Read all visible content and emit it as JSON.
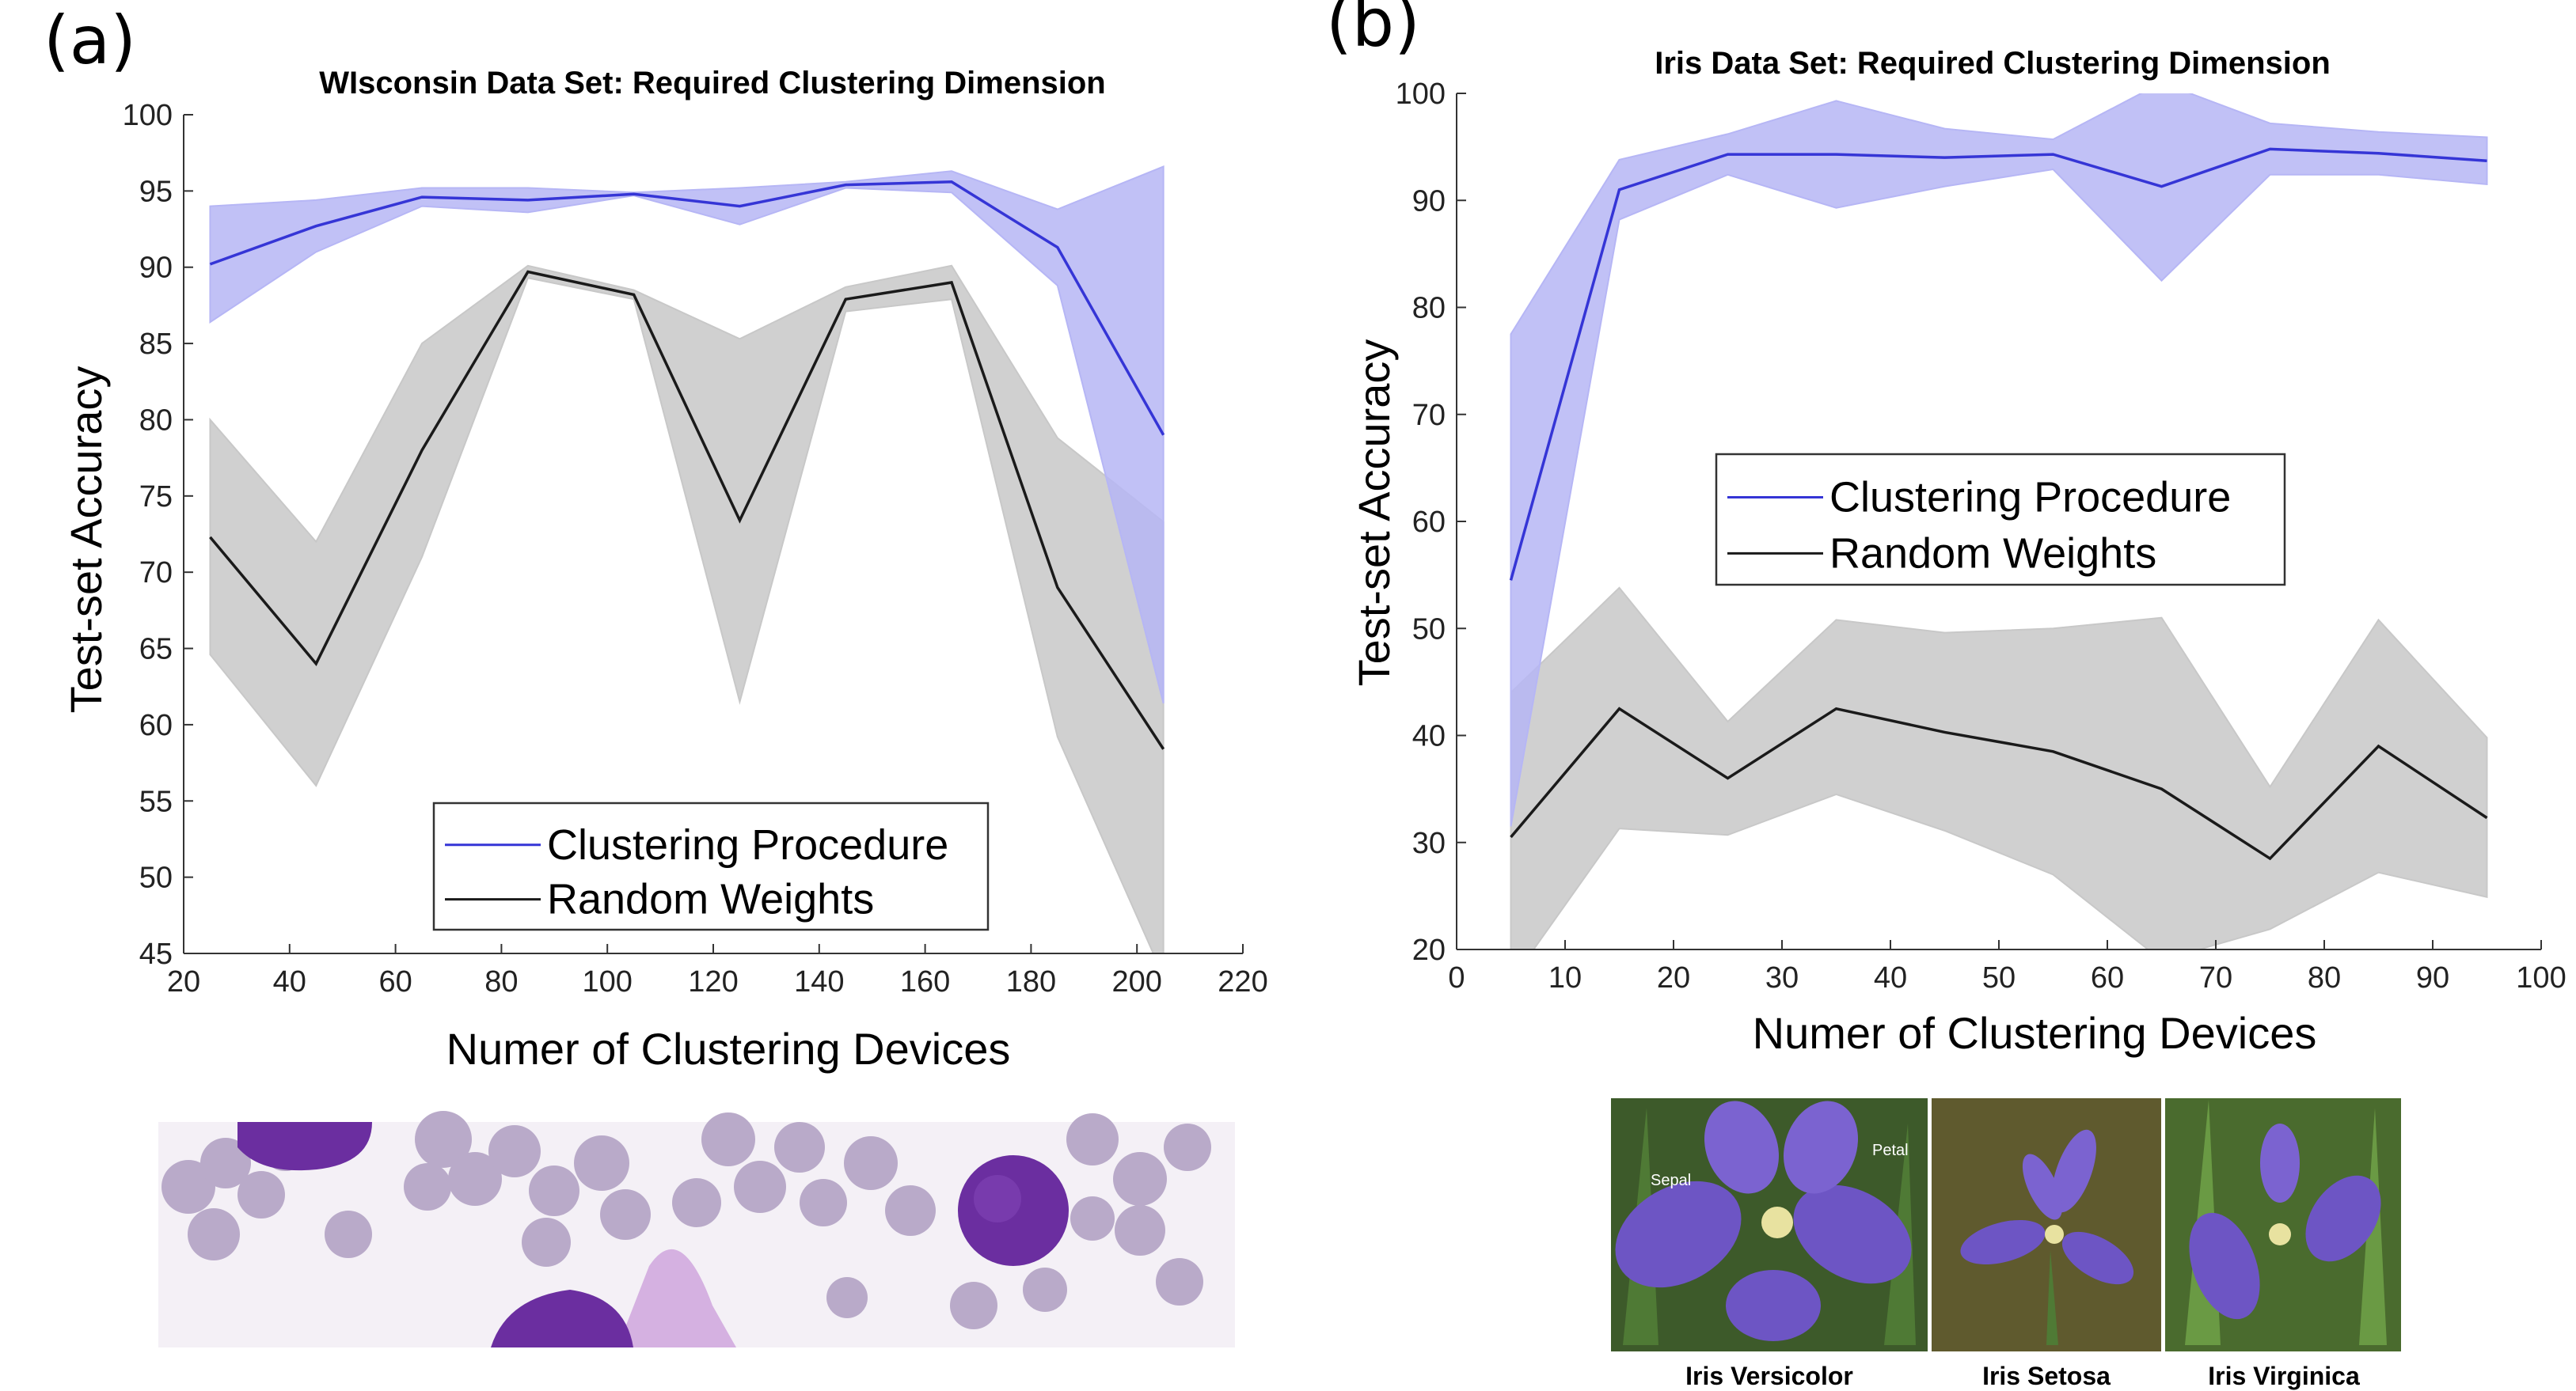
{
  "chart_data": [
    {
      "panel_label": "(a)",
      "type": "line",
      "title": "WIsconsin Data Set: Required Clustering Dimension",
      "xlabel": "Numer of Clustering Devices",
      "ylabel": "Test-set Accuracy",
      "xlim": [
        20,
        220
      ],
      "ylim": [
        45,
        100
      ],
      "xticks": [
        20,
        40,
        60,
        80,
        100,
        120,
        140,
        160,
        180,
        200,
        220
      ],
      "yticks": [
        45,
        50,
        55,
        60,
        65,
        70,
        75,
        80,
        85,
        90,
        95,
        100
      ],
      "x": [
        25,
        45,
        65,
        85,
        105,
        125,
        145,
        165,
        185,
        205
      ],
      "series": [
        {
          "name": "Clustering Procedure",
          "color": "#3535d6",
          "fill": "#b6b6f5",
          "values": [
            90.2,
            92.7,
            94.6,
            94.4,
            94.8,
            94.0,
            95.4,
            95.6,
            91.3,
            79.0
          ],
          "upper": [
            94.0,
            94.4,
            95.2,
            95.2,
            94.9,
            95.2,
            95.6,
            96.3,
            93.8,
            96.6
          ],
          "lower": [
            86.4,
            91.0,
            94.0,
            93.6,
            94.7,
            92.8,
            95.2,
            94.9,
            88.8,
            61.4
          ]
        },
        {
          "name": "Random Weights",
          "color": "#1a1a1a",
          "fill": "#c8c8c8",
          "values": [
            72.3,
            64.0,
            78.0,
            89.7,
            88.2,
            73.4,
            87.9,
            89.0,
            69.0,
            58.4
          ],
          "upper": [
            80.0,
            72.0,
            85.0,
            90.1,
            88.5,
            85.3,
            88.7,
            90.1,
            78.8,
            73.3
          ],
          "lower": [
            64.6,
            56.0,
            71.0,
            89.3,
            87.9,
            61.5,
            87.1,
            87.9,
            59.2,
            43.5
          ]
        }
      ],
      "legend": [
        "Clustering Procedure",
        "Random Weights"
      ],
      "legend_position": "bottom-center"
    },
    {
      "panel_label": "(b)",
      "type": "line",
      "title": "Iris Data Set: Required Clustering Dimension",
      "xlabel": "Numer of Clustering Devices",
      "ylabel": "Test-set Accuracy",
      "xlim": [
        0,
        100
      ],
      "ylim": [
        20,
        100
      ],
      "xticks": [
        0,
        10,
        20,
        30,
        40,
        50,
        60,
        70,
        80,
        90,
        100
      ],
      "yticks": [
        20,
        30,
        40,
        50,
        60,
        70,
        80,
        90,
        100
      ],
      "x": [
        5,
        15,
        25,
        35,
        45,
        55,
        65,
        75,
        85,
        95
      ],
      "series": [
        {
          "name": "Clustering Procedure",
          "color": "#3535d6",
          "fill": "#b6b6f5",
          "values": [
            54.5,
            91.0,
            94.3,
            94.3,
            94.0,
            94.3,
            91.3,
            94.8,
            94.4,
            93.7
          ],
          "upper": [
            77.5,
            93.8,
            96.2,
            99.3,
            96.7,
            95.7,
            101.0,
            97.2,
            96.4,
            95.9
          ],
          "lower": [
            31.5,
            88.2,
            92.4,
            89.3,
            91.3,
            92.9,
            82.5,
            92.4,
            92.4,
            91.5
          ]
        },
        {
          "name": "Random Weights",
          "color": "#1a1a1a",
          "fill": "#c8c8c8",
          "values": [
            30.5,
            42.5,
            36.0,
            42.5,
            40.3,
            38.5,
            35.0,
            28.5,
            39.0,
            32.3
          ],
          "upper": [
            44.0,
            53.8,
            41.3,
            50.8,
            49.6,
            50.0,
            51.0,
            35.2,
            50.8,
            39.8
          ],
          "lower": [
            17.0,
            31.3,
            30.7,
            34.5,
            31.1,
            27.0,
            19.0,
            21.9,
            27.2,
            24.9
          ]
        }
      ],
      "legend": [
        "Clustering Procedure",
        "Random Weights"
      ],
      "legend_position": "center"
    }
  ],
  "images": {
    "left_image": "blood-cell-micrograph",
    "right_labels": {
      "sepal": "Sepal",
      "petal": "Petal"
    },
    "right_captions": [
      "Iris Versicolor",
      "Iris Setosa",
      "Iris Virginica"
    ]
  },
  "colors": {
    "background": "#ffffff",
    "cell_pale": "#b9aac9",
    "cell_dark": "#6b2ea0",
    "cell_bg": "#f4f0f6",
    "iris_petal": "#6d55c4",
    "iris_leaf": "#4f7a35",
    "iris_bg": "#3d5a2a"
  }
}
